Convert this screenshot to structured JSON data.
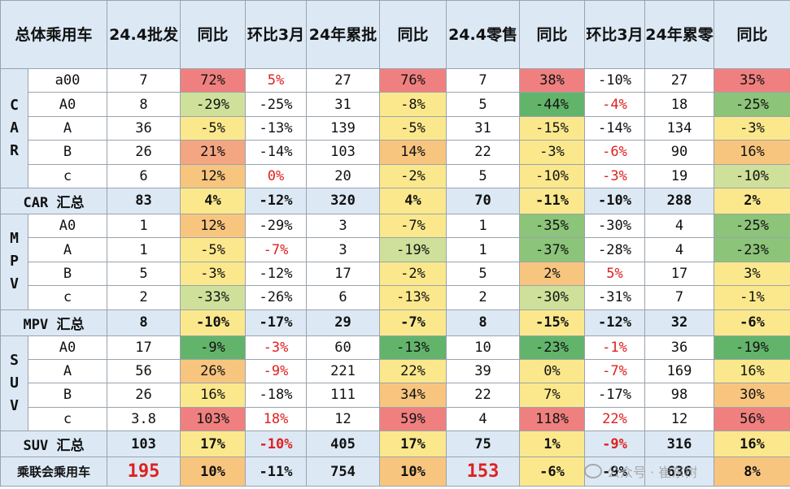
{
  "header": [
    "总体乘用车",
    "24.4批发",
    "同比",
    "环比3月",
    "24年累批",
    "同比",
    "24.4零售",
    "同比",
    "环比3月",
    "24年累零",
    "同比"
  ],
  "colors": {
    "dark_red": "#f08080",
    "red": "#f4a582",
    "orange": "#f8c57f",
    "yellow": "#fbe88c",
    "light_green": "#cfe09a",
    "green": "#8cc47a",
    "dark_green": "#63b46b",
    "header_bg": "#dce9f5",
    "negative_text": "#e02020"
  },
  "groups": [
    {
      "label": "CAR",
      "rows": [
        {
          "name": "a00",
          "cells": [
            {
              "v": "7"
            },
            {
              "v": "72%",
              "bg": "dark_red"
            },
            {
              "v": "5%",
              "red": true
            },
            {
              "v": "27"
            },
            {
              "v": "76%",
              "bg": "dark_red"
            },
            {
              "v": "7"
            },
            {
              "v": "38%",
              "bg": "dark_red"
            },
            {
              "v": "-10%"
            },
            {
              "v": "27"
            },
            {
              "v": "35%",
              "bg": "dark_red"
            }
          ]
        },
        {
          "name": "A0",
          "cells": [
            {
              "v": "8"
            },
            {
              "v": "-29%",
              "bg": "light_green"
            },
            {
              "v": "-25%"
            },
            {
              "v": "31"
            },
            {
              "v": "-8%",
              "bg": "yellow"
            },
            {
              "v": "5"
            },
            {
              "v": "-44%",
              "bg": "dark_green"
            },
            {
              "v": "-4%",
              "red": true
            },
            {
              "v": "18"
            },
            {
              "v": "-25%",
              "bg": "green"
            }
          ]
        },
        {
          "name": "A",
          "cells": [
            {
              "v": "36"
            },
            {
              "v": "-5%",
              "bg": "yellow"
            },
            {
              "v": "-13%"
            },
            {
              "v": "139"
            },
            {
              "v": "-5%",
              "bg": "yellow"
            },
            {
              "v": "31"
            },
            {
              "v": "-15%",
              "bg": "yellow"
            },
            {
              "v": "-14%"
            },
            {
              "v": "134"
            },
            {
              "v": "-3%",
              "bg": "yellow"
            }
          ]
        },
        {
          "name": "B",
          "cells": [
            {
              "v": "26"
            },
            {
              "v": "21%",
              "bg": "red"
            },
            {
              "v": "-14%"
            },
            {
              "v": "103"
            },
            {
              "v": "14%",
              "bg": "orange"
            },
            {
              "v": "22"
            },
            {
              "v": "-3%",
              "bg": "yellow"
            },
            {
              "v": "-6%",
              "red": true
            },
            {
              "v": "90"
            },
            {
              "v": "16%",
              "bg": "orange"
            }
          ]
        },
        {
          "name": "c",
          "cells": [
            {
              "v": "6"
            },
            {
              "v": "12%",
              "bg": "orange"
            },
            {
              "v": "0%",
              "red": true
            },
            {
              "v": "20"
            },
            {
              "v": "-2%",
              "bg": "yellow"
            },
            {
              "v": "5"
            },
            {
              "v": "-10%",
              "bg": "yellow"
            },
            {
              "v": "-3%",
              "red": true
            },
            {
              "v": "19"
            },
            {
              "v": "-10%",
              "bg": "light_green"
            }
          ]
        }
      ],
      "summary": {
        "name": "CAR 汇总",
        "cells": [
          {
            "v": "83"
          },
          {
            "v": "4%",
            "bg": "yellow"
          },
          {
            "v": "-12%"
          },
          {
            "v": "320"
          },
          {
            "v": "4%",
            "bg": "yellow"
          },
          {
            "v": "70"
          },
          {
            "v": "-11%",
            "bg": "yellow"
          },
          {
            "v": "-10%"
          },
          {
            "v": "288"
          },
          {
            "v": "2%",
            "bg": "yellow"
          }
        ]
      }
    },
    {
      "label": "MPV",
      "rows": [
        {
          "name": "A0",
          "cells": [
            {
              "v": "1"
            },
            {
              "v": "12%",
              "bg": "orange"
            },
            {
              "v": "-29%"
            },
            {
              "v": "3"
            },
            {
              "v": "-7%",
              "bg": "yellow"
            },
            {
              "v": "1"
            },
            {
              "v": "-35%",
              "bg": "green"
            },
            {
              "v": "-30%"
            },
            {
              "v": "4"
            },
            {
              "v": "-25%",
              "bg": "green"
            }
          ]
        },
        {
          "name": "A",
          "cells": [
            {
              "v": "1"
            },
            {
              "v": "-5%",
              "bg": "yellow"
            },
            {
              "v": "-7%",
              "red": true
            },
            {
              "v": "3"
            },
            {
              "v": "-19%",
              "bg": "light_green"
            },
            {
              "v": "1"
            },
            {
              "v": "-37%",
              "bg": "green"
            },
            {
              "v": "-28%"
            },
            {
              "v": "4"
            },
            {
              "v": "-23%",
              "bg": "green"
            }
          ]
        },
        {
          "name": "B",
          "cells": [
            {
              "v": "5"
            },
            {
              "v": "-3%",
              "bg": "yellow"
            },
            {
              "v": "-12%"
            },
            {
              "v": "17"
            },
            {
              "v": "-2%",
              "bg": "yellow"
            },
            {
              "v": "5"
            },
            {
              "v": "2%",
              "bg": "orange"
            },
            {
              "v": "5%",
              "red": true
            },
            {
              "v": "17"
            },
            {
              "v": "3%",
              "bg": "yellow"
            }
          ]
        },
        {
          "name": "c",
          "cells": [
            {
              "v": "2"
            },
            {
              "v": "-33%",
              "bg": "light_green"
            },
            {
              "v": "-26%"
            },
            {
              "v": "6"
            },
            {
              "v": "-13%",
              "bg": "yellow"
            },
            {
              "v": "2"
            },
            {
              "v": "-30%",
              "bg": "light_green"
            },
            {
              "v": "-31%"
            },
            {
              "v": "7"
            },
            {
              "v": "-1%",
              "bg": "yellow"
            }
          ]
        }
      ],
      "summary": {
        "name": "MPV 汇总",
        "cells": [
          {
            "v": "8"
          },
          {
            "v": "-10%",
            "bg": "yellow"
          },
          {
            "v": "-17%"
          },
          {
            "v": "29"
          },
          {
            "v": "-7%",
            "bg": "yellow"
          },
          {
            "v": "8"
          },
          {
            "v": "-15%",
            "bg": "yellow"
          },
          {
            "v": "-12%"
          },
          {
            "v": "32"
          },
          {
            "v": "-6%",
            "bg": "yellow"
          }
        ]
      }
    },
    {
      "label": "SUV",
      "rows": [
        {
          "name": "A0",
          "cells": [
            {
              "v": "17"
            },
            {
              "v": "-9%",
              "bg": "dark_green"
            },
            {
              "v": "-3%",
              "red": true
            },
            {
              "v": "60"
            },
            {
              "v": "-13%",
              "bg": "dark_green"
            },
            {
              "v": "10"
            },
            {
              "v": "-23%",
              "bg": "dark_green"
            },
            {
              "v": "-1%",
              "red": true
            },
            {
              "v": "36"
            },
            {
              "v": "-19%",
              "bg": "dark_green"
            }
          ]
        },
        {
          "name": "A",
          "cells": [
            {
              "v": "56"
            },
            {
              "v": "26%",
              "bg": "orange"
            },
            {
              "v": "-9%",
              "red": true
            },
            {
              "v": "221"
            },
            {
              "v": "22%",
              "bg": "yellow"
            },
            {
              "v": "39"
            },
            {
              "v": "0%",
              "bg": "yellow"
            },
            {
              "v": "-7%",
              "red": true
            },
            {
              "v": "169"
            },
            {
              "v": "16%",
              "bg": "yellow"
            }
          ]
        },
        {
          "name": "B",
          "cells": [
            {
              "v": "26"
            },
            {
              "v": "16%",
              "bg": "yellow"
            },
            {
              "v": "-18%"
            },
            {
              "v": "111"
            },
            {
              "v": "34%",
              "bg": "orange"
            },
            {
              "v": "22"
            },
            {
              "v": "7%",
              "bg": "yellow"
            },
            {
              "v": "-17%"
            },
            {
              "v": "98"
            },
            {
              "v": "30%",
              "bg": "orange"
            }
          ]
        },
        {
          "name": "c",
          "cells": [
            {
              "v": "3.8"
            },
            {
              "v": "103%",
              "bg": "dark_red"
            },
            {
              "v": "18%",
              "red": true
            },
            {
              "v": "12"
            },
            {
              "v": "59%",
              "bg": "dark_red"
            },
            {
              "v": "4"
            },
            {
              "v": "118%",
              "bg": "dark_red"
            },
            {
              "v": "22%",
              "red": true
            },
            {
              "v": "12"
            },
            {
              "v": "56%",
              "bg": "dark_red"
            }
          ]
        }
      ],
      "summary": {
        "name": "SUV 汇总",
        "cells": [
          {
            "v": "103"
          },
          {
            "v": "17%",
            "bg": "yellow"
          },
          {
            "v": "-10%",
            "red": true
          },
          {
            "v": "405"
          },
          {
            "v": "17%",
            "bg": "yellow"
          },
          {
            "v": "75"
          },
          {
            "v": "1%",
            "bg": "yellow"
          },
          {
            "v": "-9%",
            "red": true
          },
          {
            "v": "316"
          },
          {
            "v": "16%",
            "bg": "yellow"
          }
        ]
      }
    }
  ],
  "total": {
    "name": "乘联会乘用车",
    "cells": [
      {
        "v": "195",
        "red": true,
        "big": true
      },
      {
        "v": "10%",
        "bg": "orange"
      },
      {
        "v": "-11%"
      },
      {
        "v": "754"
      },
      {
        "v": "10%",
        "bg": "orange"
      },
      {
        "v": "153",
        "red": true,
        "big": true
      },
      {
        "v": "-6%",
        "bg": "yellow"
      },
      {
        "v": "-9%"
      },
      {
        "v": "636"
      },
      {
        "v": "8%",
        "bg": "orange"
      }
    ]
  },
  "watermark": "公众号 · 崔东树"
}
